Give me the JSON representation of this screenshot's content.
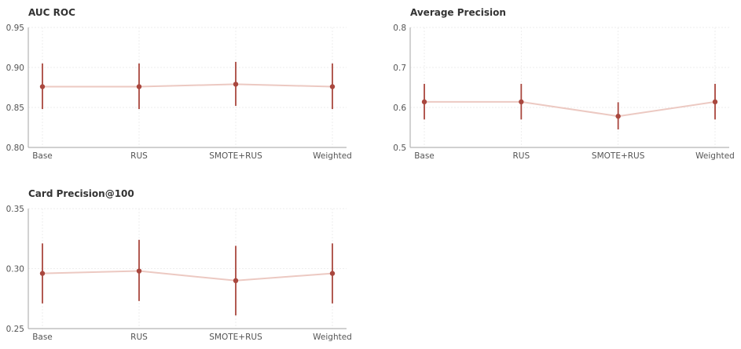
{
  "colors": {
    "point": "#a9473e",
    "connector": "#ecc9c2",
    "axis": "#b5b5b5",
    "grid": "#e9e9e9"
  },
  "chart_data": [
    {
      "type": "line",
      "title": "AUC ROC",
      "categories": [
        "Base",
        "RUS",
        "SMOTE+RUS",
        "Weighted"
      ],
      "values": [
        0.876,
        0.876,
        0.879,
        0.876
      ],
      "error_low": [
        0.848,
        0.848,
        0.852,
        0.848
      ],
      "error_high": [
        0.905,
        0.905,
        0.907,
        0.905
      ],
      "ylim": [
        0.8,
        0.95
      ],
      "yticks": [
        "0.80",
        "0.85",
        "0.90",
        "0.95"
      ],
      "grid": true
    },
    {
      "type": "line",
      "title": "Average Precision",
      "categories": [
        "Base",
        "RUS",
        "SMOTE+RUS",
        "Weighted"
      ],
      "values": [
        0.614,
        0.614,
        0.578,
        0.614
      ],
      "error_low": [
        0.57,
        0.57,
        0.545,
        0.57
      ],
      "error_high": [
        0.659,
        0.659,
        0.613,
        0.659
      ],
      "ylim": [
        0.5,
        0.8
      ],
      "yticks": [
        "0.5",
        "0.6",
        "0.7",
        "0.8"
      ],
      "grid": true
    },
    {
      "type": "line",
      "title": "Card Precision@100",
      "categories": [
        "Base",
        "RUS",
        "SMOTE+RUS",
        "Weighted"
      ],
      "values": [
        0.296,
        0.298,
        0.29,
        0.296
      ],
      "error_low": [
        0.271,
        0.273,
        0.261,
        0.271
      ],
      "error_high": [
        0.321,
        0.324,
        0.319,
        0.321
      ],
      "ylim": [
        0.25,
        0.35
      ],
      "yticks": [
        "0.25",
        "0.30",
        "0.35"
      ],
      "grid": true
    }
  ]
}
